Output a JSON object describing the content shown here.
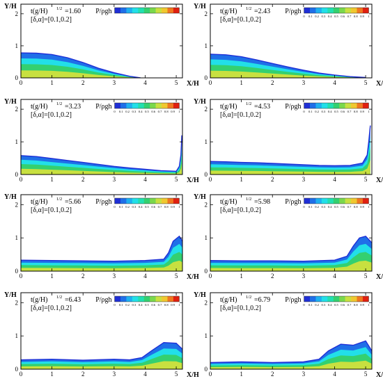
{
  "figure": {
    "colorbar_label": "P/ρgh",
    "colorbar_ticks": [
      "0",
      "0.1",
      "0.2",
      "0.3",
      "0.4",
      "0.5",
      "0.6",
      "0.7",
      "0.8",
      "0.9",
      "1"
    ],
    "colorbar_colors": [
      "#1f2fd6",
      "#1f6fe8",
      "#1fb0f0",
      "#22dfe8",
      "#22e0b0",
      "#34d070",
      "#7ad84c",
      "#c8e040",
      "#f0c830",
      "#f07820",
      "#e02010"
    ],
    "y_axis_label": "Y/H",
    "x_axis_label": "X/H",
    "param_line": "[δ,α]=[0.1,0.2]"
  },
  "chart_data": [
    {
      "type": "heatmap",
      "time_label": "t(g/H)",
      "time_exponent": "1/2",
      "time_value": "=1.60",
      "x_ticks": [
        0,
        1,
        2,
        3,
        4,
        5
      ],
      "y_ticks": [
        0,
        1,
        2
      ],
      "xlim": [
        0,
        5.2
      ],
      "ylim": [
        0,
        2.3
      ],
      "surface": [
        [
          0,
          0.78
        ],
        [
          0.5,
          0.77
        ],
        [
          1,
          0.73
        ],
        [
          1.5,
          0.63
        ],
        [
          2,
          0.48
        ],
        [
          2.5,
          0.3
        ],
        [
          3,
          0.16
        ],
        [
          3.5,
          0.05
        ],
        [
          3.85,
          0.0
        ]
      ],
      "show_colorbar_ticks": false
    },
    {
      "type": "heatmap",
      "time_label": "t(g/H)",
      "time_exponent": "1/2",
      "time_value": "=2.43",
      "x_ticks": [
        0,
        1,
        2,
        3,
        4,
        5
      ],
      "y_ticks": [
        0,
        1,
        2
      ],
      "xlim": [
        0,
        5.2
      ],
      "ylim": [
        0,
        2.3
      ],
      "surface": [
        [
          0,
          0.74
        ],
        [
          0.5,
          0.72
        ],
        [
          1,
          0.66
        ],
        [
          1.5,
          0.56
        ],
        [
          2,
          0.45
        ],
        [
          2.5,
          0.34
        ],
        [
          3,
          0.24
        ],
        [
          3.5,
          0.15
        ],
        [
          4,
          0.09
        ],
        [
          4.5,
          0.04
        ],
        [
          5,
          0.01
        ]
      ],
      "show_colorbar_ticks": true
    },
    {
      "type": "heatmap",
      "time_label": "t(g/H)",
      "time_exponent": "1/2",
      "time_value": "=3.23",
      "x_ticks": [
        0,
        1,
        2,
        3,
        4,
        5
      ],
      "y_ticks": [
        0,
        1,
        2
      ],
      "xlim": [
        0,
        5.2
      ],
      "ylim": [
        0,
        2.3
      ],
      "surface": [
        [
          0,
          0.58
        ],
        [
          0.5,
          0.55
        ],
        [
          1,
          0.49
        ],
        [
          1.5,
          0.43
        ],
        [
          2,
          0.37
        ],
        [
          2.5,
          0.31
        ],
        [
          3,
          0.25
        ],
        [
          3.5,
          0.2
        ],
        [
          4,
          0.16
        ],
        [
          4.5,
          0.12
        ],
        [
          5,
          0.1
        ],
        [
          5.1,
          0.25
        ],
        [
          5.15,
          0.6
        ],
        [
          5.18,
          1.2
        ]
      ],
      "show_colorbar_ticks": true
    },
    {
      "type": "heatmap",
      "time_label": "t(g/H)",
      "time_exponent": "1/2",
      "time_value": "=4.53",
      "x_ticks": [
        0,
        1,
        2,
        3,
        4,
        5
      ],
      "y_ticks": [
        0,
        1,
        2
      ],
      "xlim": [
        0,
        5.2
      ],
      "ylim": [
        0,
        2.3
      ],
      "surface": [
        [
          0,
          0.4
        ],
        [
          0.5,
          0.39
        ],
        [
          1,
          0.37
        ],
        [
          1.5,
          0.36
        ],
        [
          2,
          0.34
        ],
        [
          2.5,
          0.32
        ],
        [
          3,
          0.3
        ],
        [
          3.5,
          0.28
        ],
        [
          4,
          0.27
        ],
        [
          4.5,
          0.28
        ],
        [
          4.9,
          0.35
        ],
        [
          5.05,
          0.6
        ],
        [
          5.1,
          1.0
        ],
        [
          5.15,
          1.5
        ]
      ],
      "show_colorbar_ticks": true
    },
    {
      "type": "heatmap",
      "time_label": "t(g/H)",
      "time_exponent": "1/2",
      "time_value": "=5.66",
      "x_ticks": [
        0,
        1,
        2,
        3,
        4,
        5
      ],
      "y_ticks": [
        0,
        1,
        2
      ],
      "xlim": [
        0,
        5.2
      ],
      "ylim": [
        0,
        2.3
      ],
      "surface": [
        [
          0,
          0.33
        ],
        [
          1,
          0.32
        ],
        [
          2,
          0.31
        ],
        [
          3,
          0.3
        ],
        [
          4,
          0.32
        ],
        [
          4.6,
          0.36
        ],
        [
          4.75,
          0.55
        ],
        [
          4.9,
          0.9
        ],
        [
          5.1,
          1.05
        ],
        [
          5.2,
          0.9
        ]
      ],
      "show_colorbar_ticks": true
    },
    {
      "type": "heatmap",
      "time_label": "t(g/H)",
      "time_exponent": "1/2",
      "time_value": "=5.98",
      "x_ticks": [
        0,
        1,
        2,
        3,
        4,
        5
      ],
      "y_ticks": [
        0,
        1,
        2
      ],
      "xlim": [
        0,
        5.2
      ],
      "ylim": [
        0,
        2.3
      ],
      "surface": [
        [
          0,
          0.32
        ],
        [
          1,
          0.31
        ],
        [
          2,
          0.31
        ],
        [
          3,
          0.3
        ],
        [
          4,
          0.33
        ],
        [
          4.4,
          0.45
        ],
        [
          4.6,
          0.75
        ],
        [
          4.8,
          1.0
        ],
        [
          5.0,
          1.05
        ],
        [
          5.2,
          0.85
        ]
      ],
      "show_colorbar_ticks": true
    },
    {
      "type": "heatmap",
      "time_label": "t(g/H)",
      "time_exponent": "1/2",
      "time_value": "=6.43",
      "x_ticks": [
        0,
        1,
        2,
        3,
        4,
        5
      ],
      "y_ticks": [
        0,
        1,
        2
      ],
      "xlim": [
        0,
        5.2
      ],
      "ylim": [
        0,
        2.3
      ],
      "surface": [
        [
          0,
          0.28
        ],
        [
          1,
          0.3
        ],
        [
          2,
          0.27
        ],
        [
          3,
          0.3
        ],
        [
          3.5,
          0.28
        ],
        [
          3.9,
          0.35
        ],
        [
          4.2,
          0.55
        ],
        [
          4.6,
          0.8
        ],
        [
          5.0,
          0.78
        ],
        [
          5.2,
          0.6
        ]
      ],
      "show_colorbar_ticks": true
    },
    {
      "type": "heatmap",
      "time_label": "t(g/H)",
      "time_exponent": "1/2",
      "time_value": "=6.79",
      "x_ticks": [
        0,
        1,
        2,
        3,
        4,
        5
      ],
      "y_ticks": [
        0,
        1,
        2
      ],
      "xlim": [
        0,
        5.2
      ],
      "ylim": [
        0,
        2.3
      ],
      "surface": [
        [
          0,
          0.2
        ],
        [
          1,
          0.22
        ],
        [
          2,
          0.2
        ],
        [
          3,
          0.22
        ],
        [
          3.5,
          0.3
        ],
        [
          3.8,
          0.55
        ],
        [
          4.2,
          0.75
        ],
        [
          4.6,
          0.72
        ],
        [
          5.0,
          0.85
        ],
        [
          5.2,
          0.55
        ]
      ],
      "show_colorbar_ticks": true
    }
  ]
}
